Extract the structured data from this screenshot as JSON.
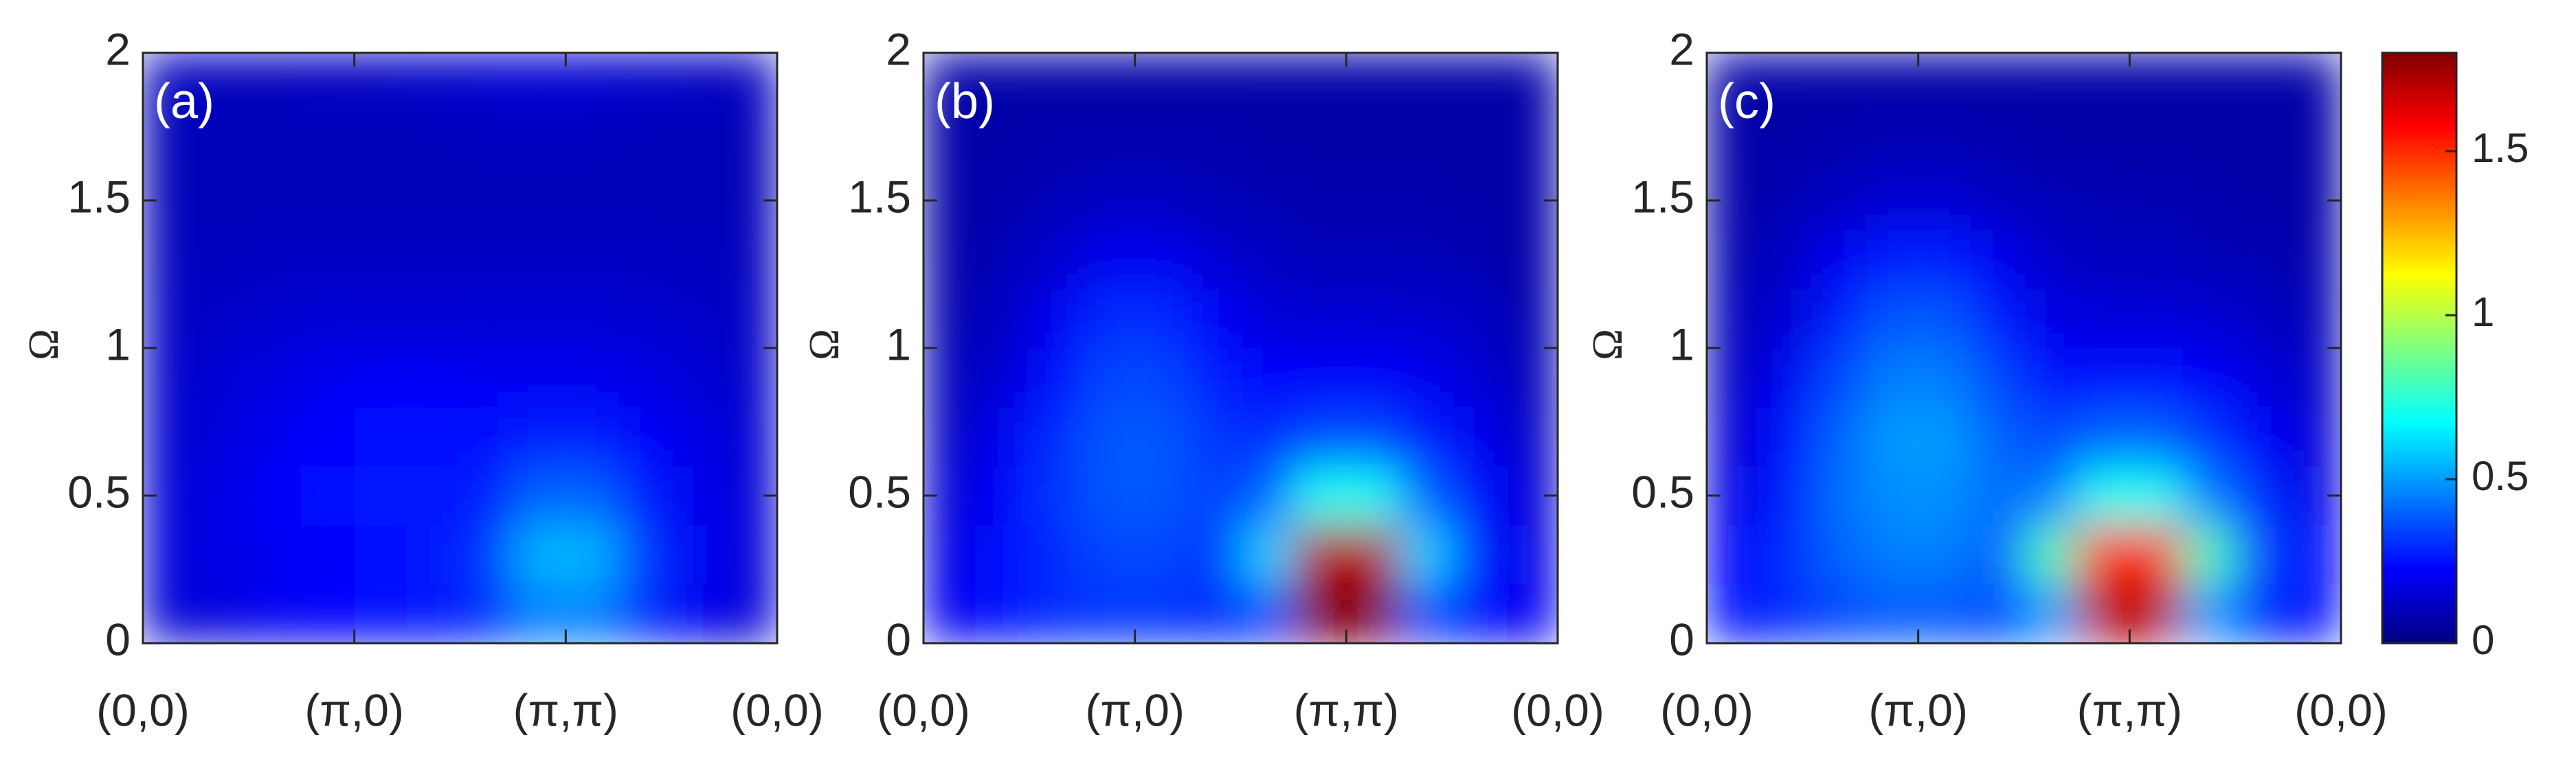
{
  "chart_data": {
    "type": "heatmap",
    "colormap": "jet",
    "ylabel": "Ω",
    "ylim": [
      0,
      2
    ],
    "yticks": [
      0,
      {
        "value": 0.5,
        "label": "0.5"
      },
      1,
      {
        "value": 1.5,
        "label": "1.5"
      },
      2
    ],
    "x_labels": [
      "(0,0)",
      "(π,0)",
      "(π,π)",
      "(0,0)"
    ],
    "colorbar": {
      "clim": [
        0,
        1.8
      ],
      "ticks": [
        0,
        {
          "value": 0.5,
          "label": "0.5"
        },
        1,
        {
          "value": 1.5,
          "label": "1.5"
        }
      ]
    },
    "panels": [
      {
        "label": "(a)",
        "z": [
          [
            0.15,
            0.17,
            0.2,
            0.22,
            0.24,
            0.26,
            0.3,
            0.45,
            0.45,
            0.3,
            0.2,
            0.15
          ],
          [
            0.16,
            0.18,
            0.2,
            0.22,
            0.24,
            0.26,
            0.32,
            0.55,
            0.55,
            0.32,
            0.2,
            0.16
          ],
          [
            0.15,
            0.18,
            0.22,
            0.25,
            0.26,
            0.26,
            0.28,
            0.4,
            0.4,
            0.28,
            0.2,
            0.15
          ],
          [
            0.14,
            0.16,
            0.2,
            0.23,
            0.24,
            0.24,
            0.24,
            0.28,
            0.28,
            0.22,
            0.18,
            0.14
          ],
          [
            0.13,
            0.15,
            0.17,
            0.2,
            0.21,
            0.21,
            0.2,
            0.2,
            0.2,
            0.18,
            0.15,
            0.13
          ],
          [
            0.12,
            0.13,
            0.14,
            0.15,
            0.15,
            0.15,
            0.15,
            0.15,
            0.15,
            0.14,
            0.13,
            0.12
          ],
          [
            0.11,
            0.11,
            0.12,
            0.12,
            0.12,
            0.12,
            0.12,
            0.12,
            0.12,
            0.12,
            0.11,
            0.11
          ],
          [
            0.1,
            0.1,
            0.1,
            0.1,
            0.1,
            0.1,
            0.1,
            0.1,
            0.1,
            0.1,
            0.1,
            0.1
          ],
          [
            0.1,
            0.1,
            0.1,
            0.1,
            0.1,
            0.1,
            0.11,
            0.11,
            0.11,
            0.1,
            0.1,
            0.1
          ],
          [
            0.11,
            0.11,
            0.11,
            0.12,
            0.12,
            0.13,
            0.14,
            0.15,
            0.14,
            0.13,
            0.12,
            0.11
          ]
        ]
      },
      {
        "label": "(b)",
        "z": [
          [
            0.2,
            0.25,
            0.3,
            0.32,
            0.32,
            0.3,
            0.35,
            1.8,
            1.8,
            0.35,
            0.25,
            0.2
          ],
          [
            0.18,
            0.25,
            0.3,
            0.35,
            0.35,
            0.32,
            0.6,
            1.7,
            1.7,
            0.6,
            0.28,
            0.18
          ],
          [
            0.15,
            0.22,
            0.32,
            0.38,
            0.38,
            0.34,
            0.4,
            0.7,
            0.7,
            0.4,
            0.25,
            0.15
          ],
          [
            0.12,
            0.2,
            0.3,
            0.38,
            0.38,
            0.32,
            0.3,
            0.35,
            0.35,
            0.28,
            0.2,
            0.12
          ],
          [
            0.1,
            0.15,
            0.25,
            0.35,
            0.35,
            0.28,
            0.22,
            0.22,
            0.22,
            0.2,
            0.15,
            0.1
          ],
          [
            0.08,
            0.12,
            0.2,
            0.3,
            0.3,
            0.22,
            0.16,
            0.15,
            0.15,
            0.14,
            0.12,
            0.08
          ],
          [
            0.07,
            0.1,
            0.14,
            0.2,
            0.2,
            0.15,
            0.12,
            0.1,
            0.1,
            0.1,
            0.09,
            0.07
          ],
          [
            0.07,
            0.08,
            0.1,
            0.12,
            0.12,
            0.1,
            0.09,
            0.08,
            0.08,
            0.08,
            0.07,
            0.07
          ],
          [
            0.07,
            0.07,
            0.08,
            0.08,
            0.08,
            0.08,
            0.07,
            0.07,
            0.07,
            0.07,
            0.07,
            0.07
          ],
          [
            0.07,
            0.07,
            0.07,
            0.07,
            0.07,
            0.07,
            0.07,
            0.07,
            0.07,
            0.07,
            0.07,
            0.07
          ]
        ]
      },
      {
        "label": "(c)",
        "z": [
          [
            0.25,
            0.3,
            0.35,
            0.38,
            0.38,
            0.35,
            0.5,
            1.7,
            1.7,
            0.5,
            0.3,
            0.25
          ],
          [
            0.22,
            0.3,
            0.4,
            0.45,
            0.45,
            0.4,
            0.8,
            1.5,
            1.5,
            0.8,
            0.35,
            0.22
          ],
          [
            0.18,
            0.28,
            0.42,
            0.48,
            0.48,
            0.42,
            0.45,
            0.7,
            0.7,
            0.45,
            0.3,
            0.18
          ],
          [
            0.15,
            0.25,
            0.4,
            0.5,
            0.5,
            0.4,
            0.35,
            0.4,
            0.4,
            0.32,
            0.22,
            0.15
          ],
          [
            0.12,
            0.2,
            0.35,
            0.45,
            0.45,
            0.35,
            0.25,
            0.25,
            0.25,
            0.22,
            0.16,
            0.12
          ],
          [
            0.1,
            0.15,
            0.28,
            0.38,
            0.38,
            0.28,
            0.18,
            0.16,
            0.16,
            0.15,
            0.12,
            0.1
          ],
          [
            0.08,
            0.12,
            0.2,
            0.28,
            0.28,
            0.2,
            0.13,
            0.11,
            0.11,
            0.1,
            0.09,
            0.08
          ],
          [
            0.07,
            0.09,
            0.12,
            0.15,
            0.15,
            0.12,
            0.1,
            0.09,
            0.09,
            0.08,
            0.07,
            0.07
          ],
          [
            0.07,
            0.07,
            0.08,
            0.09,
            0.09,
            0.08,
            0.07,
            0.07,
            0.07,
            0.07,
            0.07,
            0.07
          ],
          [
            0.07,
            0.07,
            0.07,
            0.07,
            0.07,
            0.07,
            0.07,
            0.07,
            0.07,
            0.07,
            0.07,
            0.07
          ]
        ]
      }
    ]
  }
}
